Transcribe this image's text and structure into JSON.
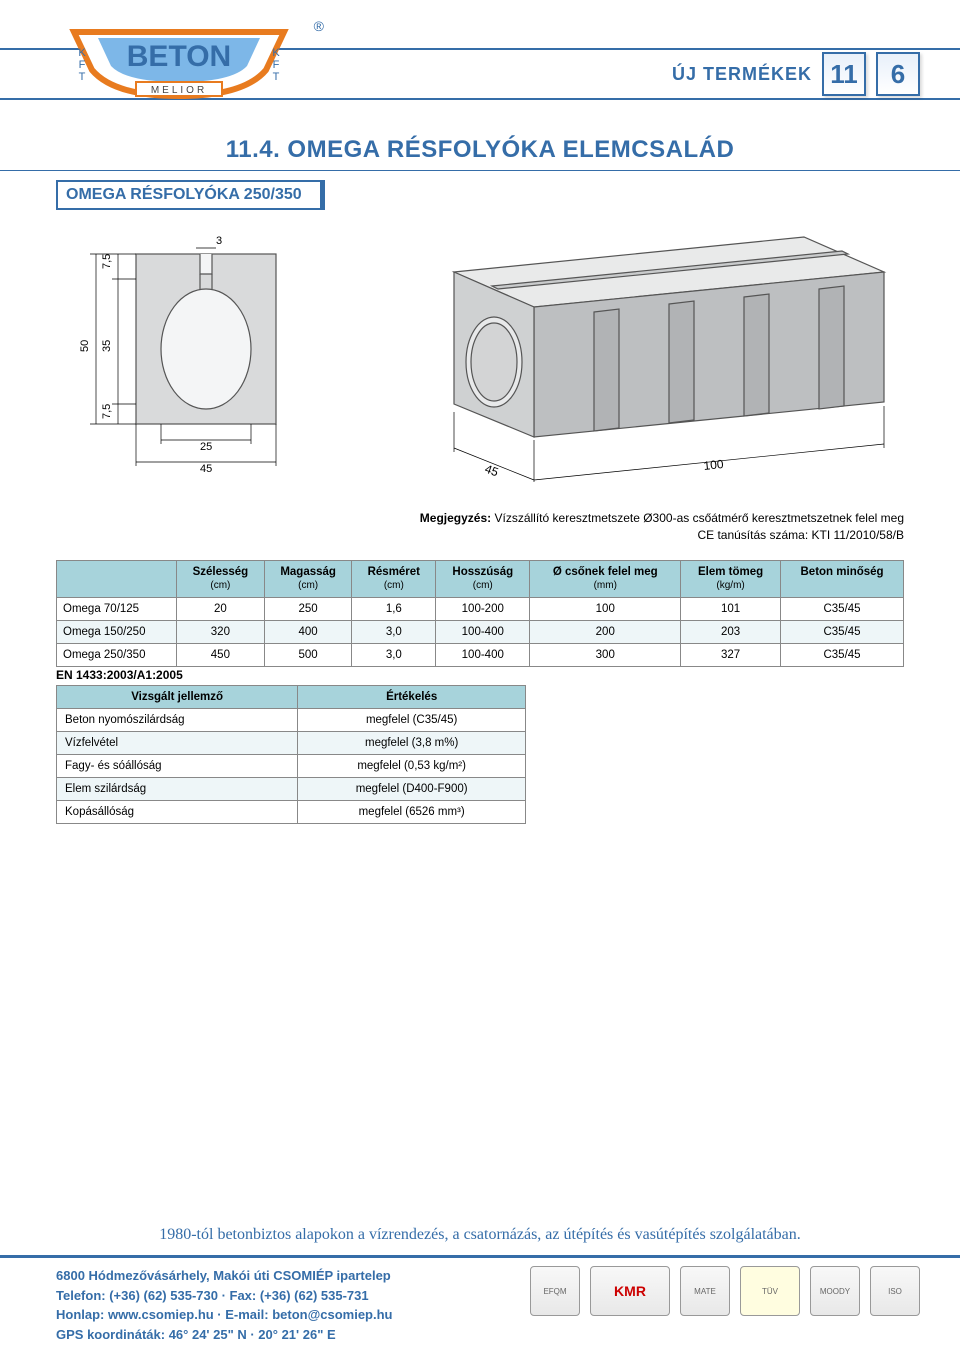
{
  "header": {
    "label": "ÚJ TERMÉKEK",
    "page_major": "11",
    "page_minor": "6"
  },
  "logo": {
    "brand": "BETON",
    "sub": "MELIOR",
    "side": "KFT"
  },
  "section_title": "11.4. OMEGA RÉSFOLYÓKA ELEMCSALÁD",
  "subtitle": "OMEGA RÉSFOLYÓKA 250/350",
  "figure": {
    "cross_section": {
      "dims": {
        "top_gap": "3",
        "upper": "7,5",
        "lower": "7,5",
        "inner_h": "35",
        "outer_h": "50",
        "inner_w": "25",
        "outer_w": "45"
      },
      "colors": {
        "fill": "#d9dadb",
        "edge": "#555",
        "void": "#f4f5f6"
      }
    },
    "iso": {
      "dims": {
        "width": "45",
        "length": "100"
      },
      "colors": {
        "top": "#e9eaea",
        "front": "#cfd1d2",
        "side": "#bdbfc1"
      }
    }
  },
  "note_label": "Megjegyzés:",
  "note_body": "Vízszállító keresztmetszete Ø300-as csőátmérő keresztmetszetnek felel meg",
  "note_ce": "CE tanúsítás száma: KTI 11/2010/58/B",
  "table": {
    "columns": [
      {
        "title": "",
        "unit": ""
      },
      {
        "title": "Szélesség",
        "unit": "(cm)"
      },
      {
        "title": "Magasság",
        "unit": "(cm)"
      },
      {
        "title": "Résméret",
        "unit": "(cm)"
      },
      {
        "title": "Hosszúság",
        "unit": "(cm)"
      },
      {
        "title": "Ø csőnek felel meg",
        "unit": "(mm)"
      },
      {
        "title": "Elem tömeg",
        "unit": "(kg/m)"
      },
      {
        "title": "Beton minőség",
        "unit": ""
      }
    ],
    "rows": [
      [
        "Omega 70/125",
        "20",
        "250",
        "1,6",
        "100-200",
        "100",
        "101",
        "C35/45"
      ],
      [
        "Omega 150/250",
        "320",
        "400",
        "3,0",
        "100-400",
        "200",
        "203",
        "C35/45"
      ],
      [
        "Omega 250/350",
        "450",
        "500",
        "3,0",
        "100-400",
        "300",
        "327",
        "C35/45"
      ]
    ]
  },
  "eval_caption": "EN 1433:2003/A1:2005",
  "eval": {
    "columns": [
      "Vizsgált jellemző",
      "Értékelés"
    ],
    "rows": [
      [
        "Beton nyomószilárdság",
        "megfelel (C35/45)"
      ],
      [
        "Vízfelvétel",
        "megfelel (3,8 m%)"
      ],
      [
        "Fagy- és sóállóság",
        "megfelel (0,53 kg/m²)"
      ],
      [
        "Elem szilárdság",
        "megfelel (D400-F900)"
      ],
      [
        "Kopásállóság",
        "megfelel (6526 mm³)"
      ]
    ]
  },
  "footer": {
    "tagline": "1980-tól betonbiztos alapokon a vízrendezés, a csatornázás, az útépítés és vasútépítés szolgálatában.",
    "addr": "6800 Hódmezővásárhely, Makói úti CSOMIÉP ipartelep",
    "tel": "Telefon: (+36) (62) 535-730 · Fax: (+36) (62) 535-731",
    "web": "Honlap: www.csomiep.hu · E-mail: beton@csomiep.hu",
    "gps": "GPS koordináták: 46° 24' 25\" N · 20° 21' 26\" E",
    "badges": [
      "EFQM",
      "KMR",
      "MATE",
      "TÜV",
      "MOODY",
      "ISO"
    ]
  },
  "colors": {
    "brand_blue": "#356da8",
    "table_header": "#a7d3db"
  }
}
